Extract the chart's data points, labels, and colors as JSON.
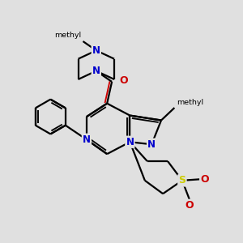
{
  "bg_color": "#e0e0e0",
  "bond_color": "#000000",
  "N_color": "#0000cc",
  "O_color": "#cc0000",
  "S_color": "#cccc00",
  "line_width": 1.6,
  "figsize": [
    3.0,
    3.0
  ],
  "dpi": 100,
  "xlim": [
    0,
    10
  ],
  "ylim": [
    0,
    10
  ]
}
